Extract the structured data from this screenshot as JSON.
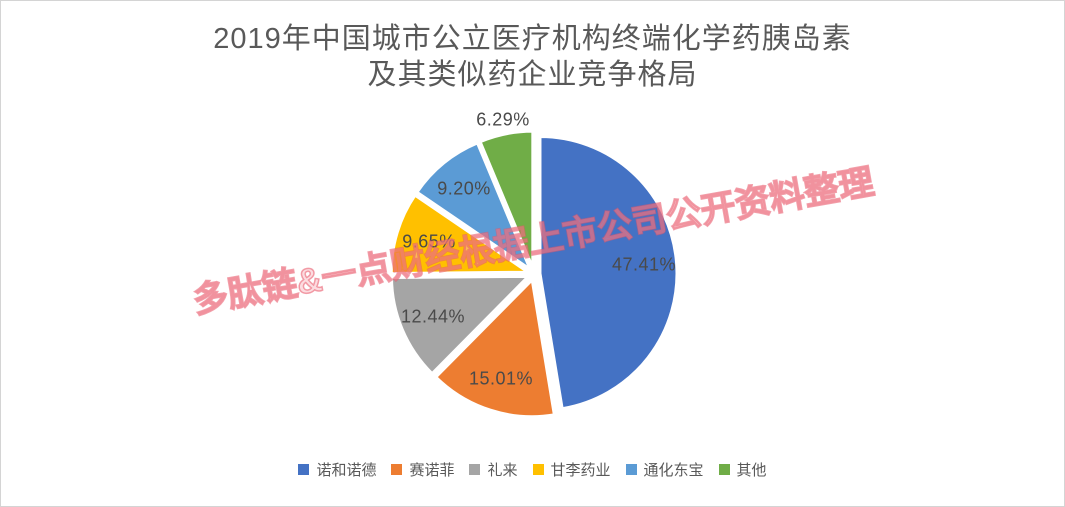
{
  "title": {
    "line1": "2019年中国城市公立医疗机构终端化学药胰岛素",
    "line2": "及其类似药企业竞争格局"
  },
  "watermark_text": "多肽链&一点财经根据上市公司公开资料整理",
  "chart_data": {
    "type": "pie",
    "title": "2019年中国城市公立医疗机构终端化学药胰岛素及其类似药企业竞争格局",
    "start_angle_deg": 0,
    "direction": "clockwise",
    "legend_position": "bottom",
    "exploded": true,
    "slices": [
      {
        "label": "诺和诺德",
        "value": 47.41,
        "display": "47.41%",
        "color": "#4472C4"
      },
      {
        "label": "赛诺菲",
        "value": 15.01,
        "display": "15.01%",
        "color": "#ED7D31"
      },
      {
        "label": "礼来",
        "value": 12.44,
        "display": "12.44%",
        "color": "#A5A5A5"
      },
      {
        "label": "甘李药业",
        "value": 9.65,
        "display": "9.65%",
        "color": "#FFC000"
      },
      {
        "label": "通化东宝",
        "value": 9.2,
        "display": "9.20%",
        "color": "#5B9BD5"
      },
      {
        "label": "其他",
        "value": 6.29,
        "display": "6.29%",
        "color": "#70AD47"
      }
    ],
    "colors": {
      "title_text": "#595959",
      "label_text": "#4a4a4a",
      "legend_text": "#595959",
      "watermark": "#E75568",
      "slice_border": "#ffffff",
      "frame_border": "#d4d4d4"
    }
  }
}
